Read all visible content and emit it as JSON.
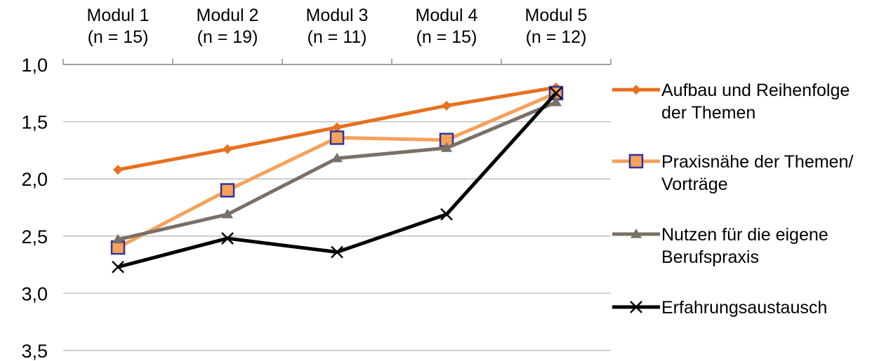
{
  "chart_data": {
    "type": "line",
    "categories": [
      "Modul 1\n(n = 15)",
      "Modul 2\n(n = 19)",
      "Modul 3\n(n = 11)",
      "Modul 4\n(n = 15)",
      "Modul 5\n(n = 12)"
    ],
    "category_lines": [
      [
        "Modul 1",
        "(n = 15)"
      ],
      [
        "Modul 2",
        "(n = 19)"
      ],
      [
        "Modul 3",
        "(n = 11)"
      ],
      [
        "Modul 4",
        "(n = 15)"
      ],
      [
        "Modul 5",
        "(n = 12)"
      ]
    ],
    "x_axis_position": "top",
    "y_axis_reversed": true,
    "ylim": [
      1.0,
      3.5
    ],
    "yticks": [
      1.0,
      1.5,
      2.0,
      2.5,
      3.0,
      3.5
    ],
    "ytick_labels": [
      "1,0",
      "1,5",
      "2,0",
      "2,5",
      "3,0",
      "3,5"
    ],
    "grid": "horizontal",
    "legend_position": "right",
    "title": "",
    "xlabel": "",
    "ylabel": "",
    "series": [
      {
        "name": "Aufbau und Reihenfolge der Themen",
        "legend_lines": [
          "Aufbau und Reihenfolge",
          "der Themen"
        ],
        "values": [
          1.92,
          1.74,
          1.55,
          1.36,
          1.2
        ],
        "color": "#E8701F",
        "marker": "diamond",
        "marker_color": "#E8701F"
      },
      {
        "name": "Praxisnähe der Themen/ Vorträge",
        "legend_lines": [
          "Praxisnähe der Themen/",
          "Vorträge"
        ],
        "values": [
          2.6,
          2.1,
          1.64,
          1.66,
          1.25
        ],
        "color": "#F5A25A",
        "marker": "square",
        "marker_color": "#3333A0"
      },
      {
        "name": "Nutzen für die eigene Berufspraxis",
        "legend_lines": [
          "Nutzen für die eigene",
          "Berufspraxis"
        ],
        "values": [
          2.53,
          2.31,
          1.82,
          1.73,
          1.33
        ],
        "color": "#7A7066",
        "marker": "triangle",
        "marker_color": "#7A7066"
      },
      {
        "name": "Erfahrungsaustausch",
        "legend_lines": [
          "Erfahrungsaustausch"
        ],
        "values": [
          2.77,
          2.52,
          2.64,
          2.31,
          1.25
        ],
        "color": "#000000",
        "marker": "x",
        "marker_color": "#000000"
      }
    ]
  }
}
